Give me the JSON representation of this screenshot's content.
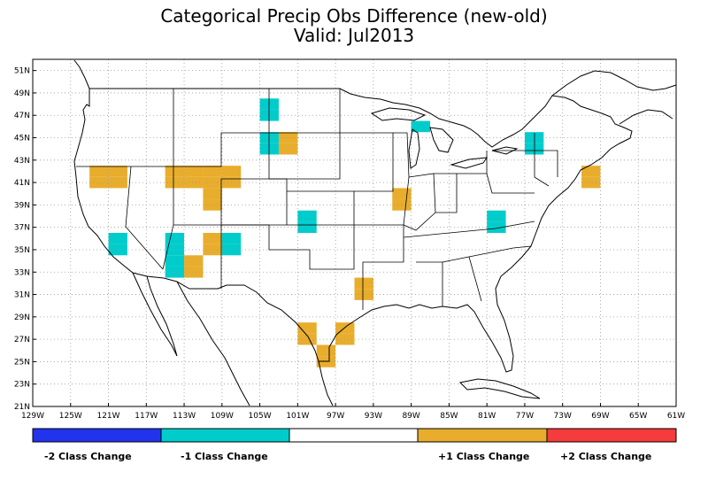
{
  "title": "Categorical Precip Obs Difference (new-old)",
  "subtitle": "Valid: Jul2013",
  "lat_labels": [
    "51N",
    "49N",
    "47N",
    "45N",
    "43N",
    "41N",
    "39N",
    "37N",
    "35N",
    "33N",
    "31N",
    "29N",
    "27N",
    "25N",
    "23N",
    "21N"
  ],
  "lon_labels": [
    "129W",
    "125W",
    "121W",
    "117W",
    "113W",
    "109W",
    "105W",
    "101W",
    "97W",
    "93W",
    "89W",
    "85W",
    "81W",
    "77W",
    "73W",
    "69W",
    "65W",
    "61W"
  ],
  "colors": {
    "minus2": "#2233ee",
    "minus1": "#00cccc",
    "zero": "#ffffff",
    "plus1": "#e8ad2c",
    "plus2": "#f53b3b"
  },
  "legend": {
    "labels": [
      "-2 Class Change",
      "-1 Class Change",
      "+1 Class Change",
      "+2 Class Change"
    ]
  },
  "map_extent": {
    "lon_min": -129,
    "lon_max": -61,
    "lat_min": 21,
    "lat_max": 52
  },
  "cells": [
    {
      "lon": -104,
      "lat": 47,
      "value": -1
    },
    {
      "lon": -104,
      "lat": 48,
      "value": -1
    },
    {
      "lon": -88,
      "lat": 46,
      "value": -1
    },
    {
      "lon": -104,
      "lat": 44,
      "value": -1
    },
    {
      "lon": -104,
      "lat": 45,
      "value": -1
    },
    {
      "lon": -102,
      "lat": 44,
      "value": 1
    },
    {
      "lon": -102,
      "lat": 45,
      "value": 1
    },
    {
      "lon": -76,
      "lat": 44,
      "value": -1
    },
    {
      "lon": -76,
      "lat": 45,
      "value": -1
    },
    {
      "lon": -122,
      "lat": 41,
      "value": 1
    },
    {
      "lon": -122,
      "lat": 42,
      "value": 1
    },
    {
      "lon": -120,
      "lat": 41,
      "value": 1
    },
    {
      "lon": -120,
      "lat": 42,
      "value": 1
    },
    {
      "lon": -114,
      "lat": 41,
      "value": 1
    },
    {
      "lon": -114,
      "lat": 42,
      "value": 1
    },
    {
      "lon": -112,
      "lat": 41,
      "value": 1
    },
    {
      "lon": -112,
      "lat": 42,
      "value": 1
    },
    {
      "lon": -110,
      "lat": 41,
      "value": 1
    },
    {
      "lon": -110,
      "lat": 42,
      "value": 1
    },
    {
      "lon": -108,
      "lat": 41,
      "value": 1
    },
    {
      "lon": -108,
      "lat": 42,
      "value": 1
    },
    {
      "lon": -110,
      "lat": 39,
      "value": 1
    },
    {
      "lon": -110,
      "lat": 40,
      "value": 1
    },
    {
      "lon": -70,
      "lat": 41,
      "value": 1
    },
    {
      "lon": -70,
      "lat": 42,
      "value": 1
    },
    {
      "lon": -90,
      "lat": 39,
      "value": 1
    },
    {
      "lon": -90,
      "lat": 40,
      "value": 1
    },
    {
      "lon": -100,
      "lat": 37,
      "value": -1
    },
    {
      "lon": -100,
      "lat": 38,
      "value": -1
    },
    {
      "lon": -80,
      "lat": 37,
      "value": -1
    },
    {
      "lon": -80,
      "lat": 38,
      "value": -1
    },
    {
      "lon": -120,
      "lat": 35,
      "value": -1
    },
    {
      "lon": -120,
      "lat": 36,
      "value": -1
    },
    {
      "lon": -114,
      "lat": 33,
      "value": -1
    },
    {
      "lon": -114,
      "lat": 34,
      "value": -1
    },
    {
      "lon": -114,
      "lat": 35,
      "value": -1
    },
    {
      "lon": -114,
      "lat": 36,
      "value": -1
    },
    {
      "lon": -112,
      "lat": 33,
      "value": 1
    },
    {
      "lon": -112,
      "lat": 34,
      "value": 1
    },
    {
      "lon": -110,
      "lat": 35,
      "value": 1
    },
    {
      "lon": -110,
      "lat": 36,
      "value": 1
    },
    {
      "lon": -108,
      "lat": 35,
      "value": -1
    },
    {
      "lon": -108,
      "lat": 36,
      "value": -1
    },
    {
      "lon": -94,
      "lat": 31,
      "value": 1
    },
    {
      "lon": -94,
      "lat": 32,
      "value": 1
    },
    {
      "lon": -100,
      "lat": 27,
      "value": 1
    },
    {
      "lon": -100,
      "lat": 28,
      "value": 1
    },
    {
      "lon": -96,
      "lat": 27,
      "value": 1
    },
    {
      "lon": -96,
      "lat": 28,
      "value": 1
    },
    {
      "lon": -98,
      "lat": 25,
      "value": 1
    },
    {
      "lon": -98,
      "lat": 26,
      "value": 1
    }
  ]
}
